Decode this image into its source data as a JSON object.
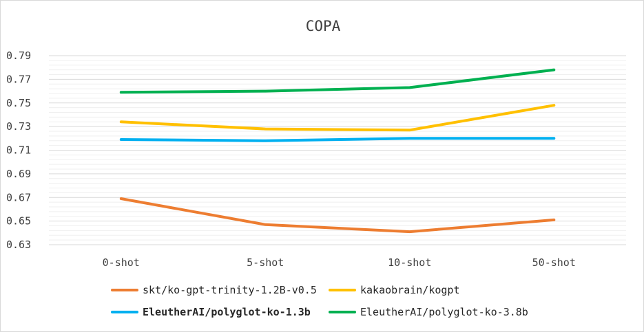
{
  "chart_data": {
    "type": "line",
    "title": "COPA",
    "categories": [
      "0-shot",
      "5-shot",
      "10-shot",
      "50-shot"
    ],
    "ylim": [
      0.63,
      0.79
    ],
    "yticks": [
      "0.79",
      "0.77",
      "0.75",
      "0.73",
      "0.71",
      "0.69",
      "0.67",
      "0.65",
      "0.63"
    ],
    "grid": true,
    "legend_position": "bottom",
    "series": [
      {
        "name": "skt/ko-gpt-trinity-1.2B-v0.5",
        "color": "#ED7D31",
        "values": [
          0.669,
          0.647,
          0.641,
          0.651
        ]
      },
      {
        "name": "kakaobrain/kogpt",
        "color": "#FFC000",
        "values": [
          0.734,
          0.728,
          0.727,
          0.748
        ]
      },
      {
        "name": "EleutherAI/polyglot-ko-1.3b",
        "color": "#00B0F0",
        "values": [
          0.719,
          0.718,
          0.72,
          0.72
        ]
      },
      {
        "name": "EleutherAI/polyglot-ko-3.8b",
        "color": "#00B050",
        "values": [
          0.759,
          0.76,
          0.763,
          0.778
        ]
      }
    ]
  }
}
